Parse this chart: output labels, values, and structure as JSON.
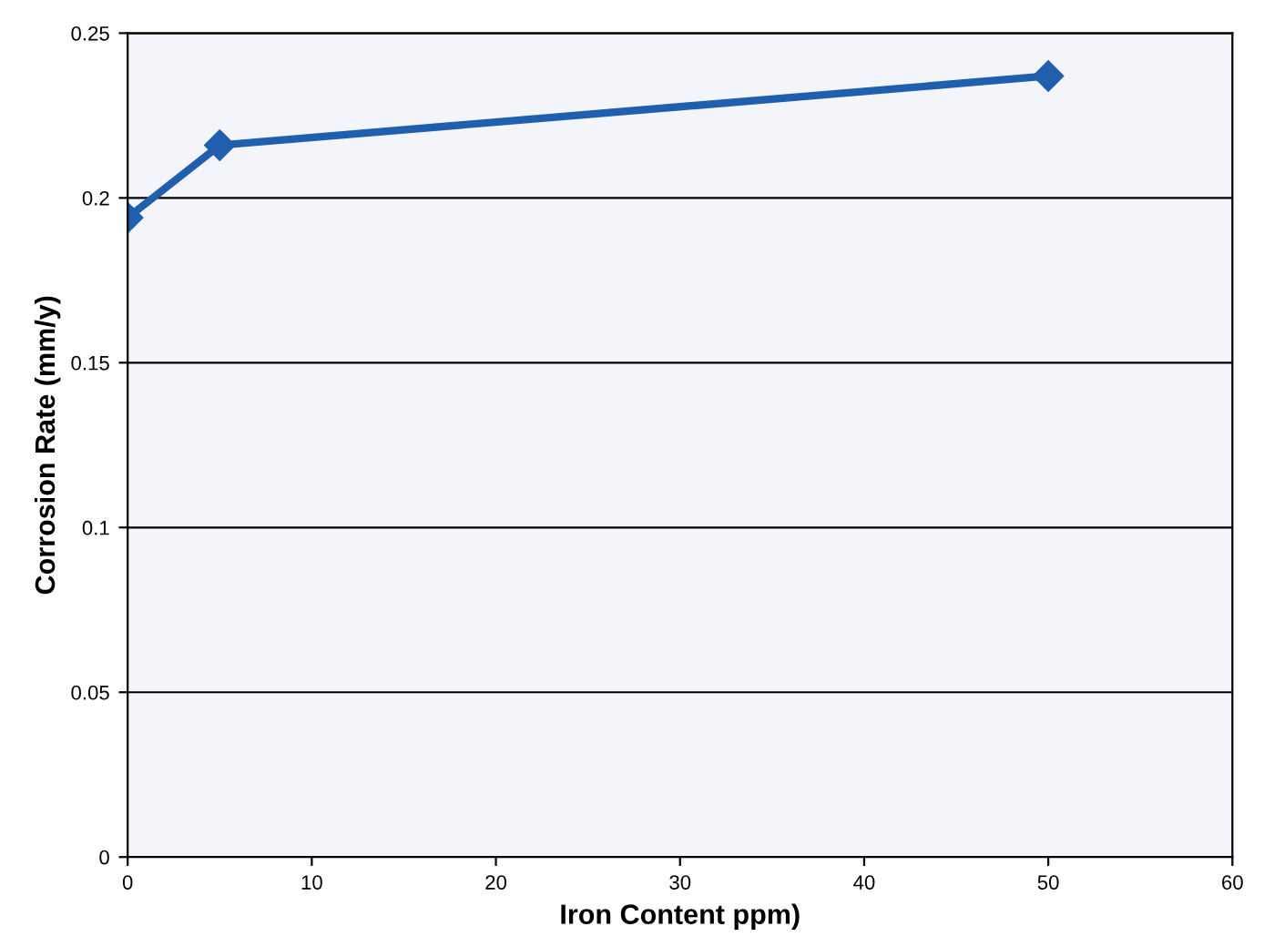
{
  "chart_data": {
    "type": "line",
    "xlabel": "Iron Content ppm)",
    "ylabel": "Corrosion Rate (mm/y)",
    "x": [
      0,
      5,
      50
    ],
    "series": [
      {
        "color": "#1f5fae",
        "values": [
          0.194,
          0.216,
          0.237
        ]
      }
    ],
    "xlim": [
      0,
      60
    ],
    "xticks": [
      0,
      10,
      20,
      30,
      40,
      50,
      60
    ],
    "ylim": [
      0,
      0.25
    ],
    "yticks": [
      0,
      0.05,
      0.1,
      0.15,
      0.2,
      0.25
    ],
    "grid": "y",
    "marker": "diamond",
    "line_style": "solid"
  }
}
